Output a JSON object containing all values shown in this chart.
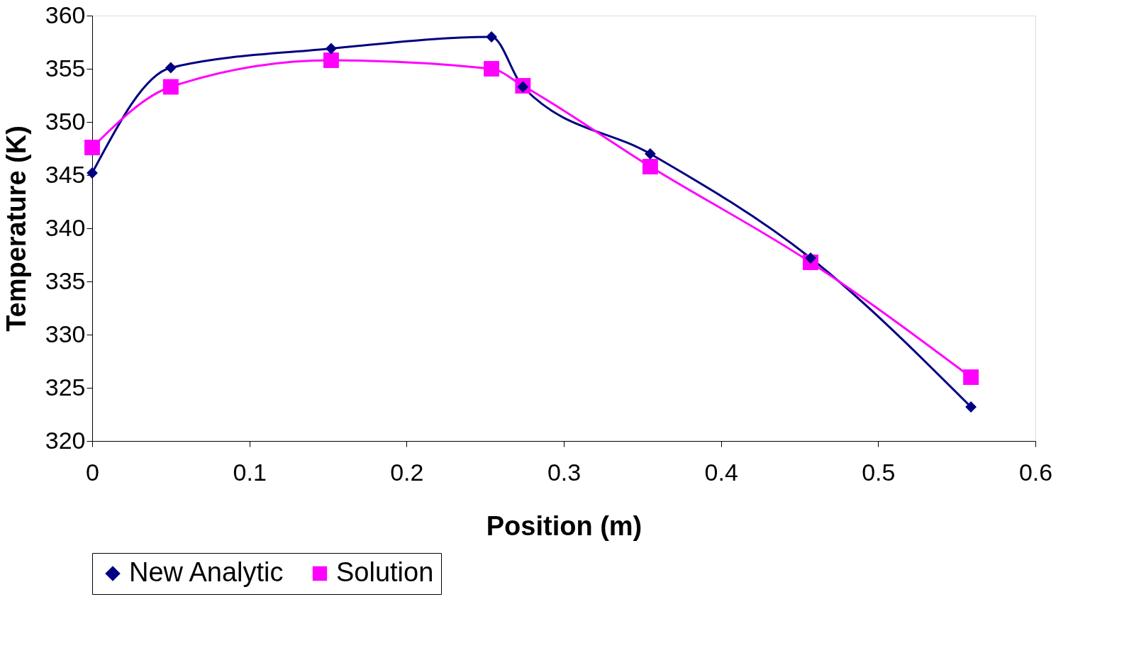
{
  "chart_data": {
    "type": "line",
    "xlabel": "Position (m)",
    "ylabel": "Temperature (K)",
    "xlim": [
      0,
      0.6
    ],
    "xticks": [
      0,
      0.1,
      0.2,
      0.3,
      0.4,
      0.5,
      0.6
    ],
    "ylim": [
      320,
      360
    ],
    "yticks": [
      320,
      325,
      330,
      335,
      340,
      345,
      350,
      355,
      360
    ],
    "grid": false,
    "legend": "bottom",
    "line_style": "solid",
    "series": [
      {
        "name": "New Analytic",
        "color": "#000080",
        "marker": "diamond",
        "x": [
          0,
          0.05,
          0.152,
          0.254,
          0.274,
          0.355,
          0.457,
          0.559
        ],
        "values": [
          345.2,
          355.1,
          356.9,
          358.0,
          353.3,
          347.0,
          337.2,
          323.2
        ]
      },
      {
        "name": "Solution",
        "color": "#ff00ff",
        "marker": "square",
        "x": [
          0,
          0.05,
          0.152,
          0.254,
          0.274,
          0.355,
          0.457,
          0.559
        ],
        "values": [
          347.6,
          353.3,
          355.8,
          355.0,
          353.4,
          345.8,
          336.8,
          326.0
        ]
      }
    ]
  }
}
